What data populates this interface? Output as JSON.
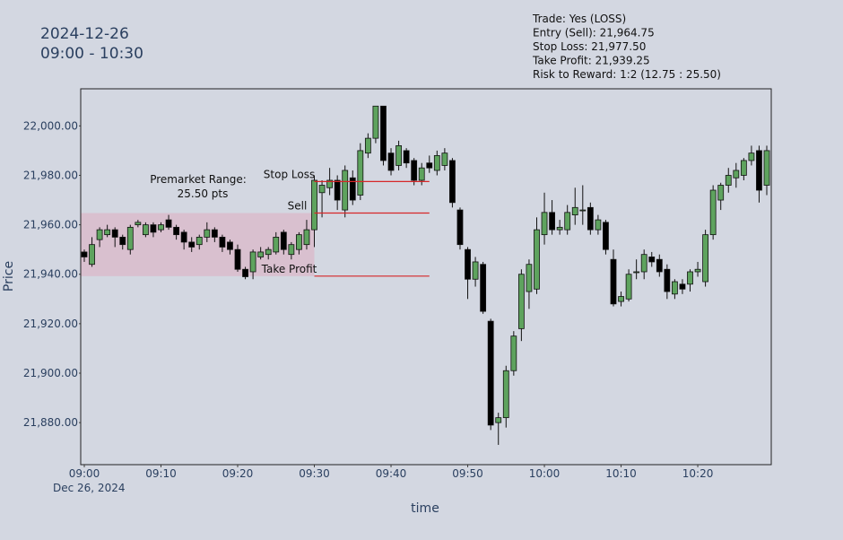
{
  "chart_data": {
    "type": "candlestick",
    "date_title": [
      "2024-12-26",
      "09:00 - 10:30"
    ],
    "info_lines": [
      "Trade: Yes (LOSS)",
      "Entry (Sell): 21,964.75",
      "Stop Loss: 21,977.50",
      "Take Profit: 21,939.25",
      "Risk to Reward: 1:2 (12.75 : 25.50)"
    ],
    "y_label": "Price",
    "x_label": "time",
    "x_date_label": "Dec 26, 2024",
    "up_color": "#5ea35e",
    "down_color": "#000000",
    "x": [
      "2024-12-26 09:00",
      "2024-12-26 09:01",
      "2024-12-26 09:02",
      "2024-12-26 09:03",
      "2024-12-26 09:04",
      "2024-12-26 09:05",
      "2024-12-26 09:06",
      "2024-12-26 09:07",
      "2024-12-26 09:08",
      "2024-12-26 09:09",
      "2024-12-26 09:10",
      "2024-12-26 09:11",
      "2024-12-26 09:12",
      "2024-12-26 09:13",
      "2024-12-26 09:14",
      "2024-12-26 09:15",
      "2024-12-26 09:16",
      "2024-12-26 09:17",
      "2024-12-26 09:18",
      "2024-12-26 09:19",
      "2024-12-26 09:20",
      "2024-12-26 09:21",
      "2024-12-26 09:22",
      "2024-12-26 09:23",
      "2024-12-26 09:24",
      "2024-12-26 09:25",
      "2024-12-26 09:26",
      "2024-12-26 09:27",
      "2024-12-26 09:28",
      "2024-12-26 09:29",
      "2024-12-26 09:30",
      "2024-12-26 09:31",
      "2024-12-26 09:32",
      "2024-12-26 09:33",
      "2024-12-26 09:34",
      "2024-12-26 09:35",
      "2024-12-26 09:36",
      "2024-12-26 09:37",
      "2024-12-26 09:38",
      "2024-12-26 09:39",
      "2024-12-26 09:40",
      "2024-12-26 09:41",
      "2024-12-26 09:42",
      "2024-12-26 09:43",
      "2024-12-26 09:44",
      "2024-12-26 09:45",
      "2024-12-26 09:46",
      "2024-12-26 09:47",
      "2024-12-26 09:48",
      "2024-12-26 09:49",
      "2024-12-26 09:50",
      "2024-12-26 09:51",
      "2024-12-26 09:52",
      "2024-12-26 09:53",
      "2024-12-26 09:54",
      "2024-12-26 09:55",
      "2024-12-26 09:56",
      "2024-12-26 09:57",
      "2024-12-26 09:58",
      "2024-12-26 09:59",
      "2024-12-26 10:00",
      "2024-12-26 10:01",
      "2024-12-26 10:02",
      "2024-12-26 10:03",
      "2024-12-26 10:04",
      "2024-12-26 10:05",
      "2024-12-26 10:06",
      "2024-12-26 10:07",
      "2024-12-26 10:08",
      "2024-12-26 10:09",
      "2024-12-26 10:10",
      "2024-12-26 10:11",
      "2024-12-26 10:12",
      "2024-12-26 10:13",
      "2024-12-26 10:14",
      "2024-12-26 10:15",
      "2024-12-26 10:16",
      "2024-12-26 10:17",
      "2024-12-26 10:18",
      "2024-12-26 10:19",
      "2024-12-26 10:20",
      "2024-12-26 10:21",
      "2024-12-26 10:22",
      "2024-12-26 10:23",
      "2024-12-26 10:24",
      "2024-12-26 10:25",
      "2024-12-26 10:26",
      "2024-12-26 10:27",
      "2024-12-26 10:28",
      "2024-12-26 10:29"
    ],
    "open": [
      21949,
      21944,
      21954,
      21956,
      21958,
      21955,
      21950,
      21960,
      21956,
      21960,
      21958,
      21962,
      21959,
      21957,
      21953,
      21952,
      21955,
      21958,
      21955,
      21953,
      21950,
      21942,
      21941,
      21947,
      21948,
      21949,
      21957,
      21948,
      21950,
      21952,
      21958,
      21973,
      21975,
      21978,
      21966,
      21979,
      21972,
      21989,
      21995,
      22008,
      21989,
      21984,
      21990,
      21986,
      21978,
      21985,
      21982,
      21984,
      21986,
      21966,
      21950,
      21938,
      21944,
      21921,
      21880,
      21882,
      21901,
      21918,
      21933,
      21934,
      21956,
      21965,
      21958,
      21958,
      21964,
      21966,
      21967,
      21958,
      21961,
      21946,
      21929,
      21930,
      21941,
      21941,
      21947,
      21946,
      21942,
      21932,
      21936,
      21936,
      21941,
      21937,
      21956,
      21970,
      21976,
      21979,
      21980,
      21986,
      21990,
      21976
    ],
    "high": [
      21950,
      21955,
      21959,
      21960,
      21959,
      21956,
      21960,
      21962,
      21961,
      21961,
      21961,
      21964,
      21960,
      21958,
      21955,
      21956,
      21961,
      21959,
      21956,
      21954,
      21952,
      21943,
      21950,
      21951,
      21951,
      21957,
      21958,
      21953,
      21957,
      21962,
      21980,
      21978,
      21983,
      21980,
      21984,
      21982,
      21993,
      21997,
      22008,
      22008,
      21991,
      21994,
      21991,
      21987,
      21985,
      21988,
      21990,
      21991,
      21987,
      21967,
      21951,
      21947,
      21945,
      21922,
      21884,
      21903,
      21917,
      21942,
      21946,
      21963,
      21973,
      21970,
      21962,
      21968,
      21975,
      21976,
      21969,
      21964,
      21962,
      21950,
      21933,
      21942,
      21946,
      21950,
      21949,
      21948,
      21944,
      21938,
      21938,
      21942,
      21945,
      21958,
      21976,
      21977,
      21983,
      21985,
      21987,
      21992,
      21992,
      21992
    ],
    "low": [
      21945,
      21943,
      21951,
      21955,
      21951,
      21950,
      21948,
      21959,
      21955,
      21955,
      21957,
      21958,
      21954,
      21950,
      21949,
      21950,
      21953,
      21953,
      21949,
      21948,
      21941,
      21938,
      21938,
      21946,
      21946,
      21948,
      21948,
      21946,
      21948,
      21950,
      21951,
      21963,
      21972,
      21966,
      21963,
      21968,
      21970,
      21987,
      21993,
      21984,
      21980,
      21982,
      21983,
      21976,
      21976,
      21981,
      21980,
      21982,
      21967,
      21950,
      21930,
      21935,
      21924,
      21877,
      21871,
      21878,
      21899,
      21913,
      21926,
      21932,
      21952,
      21956,
      21956,
      21956,
      21960,
      21960,
      21956,
      21956,
      21948,
      21927,
      21927,
      21929,
      21938,
      21938,
      21943,
      21939,
      21930,
      21930,
      21932,
      21933,
      21939,
      21935,
      21954,
      21966,
      21973,
      21975,
      21978,
      21984,
      21969,
      21972
    ],
    "close": [
      21947,
      21952,
      21958,
      21958,
      21955,
      21952,
      21959,
      21961,
      21960,
      21957,
      21960,
      21959,
      21956,
      21953,
      21951,
      21955,
      21958,
      21955,
      21951,
      21950,
      21942,
      21939,
      21949,
      21949,
      21950,
      21955,
      21950,
      21952,
      21956,
      21958,
      21978,
      21976,
      21978,
      21970,
      21982,
      21970,
      21990,
      21995,
      22008,
      21986,
      21982,
      21992,
      21985,
      21978,
      21983,
      21983,
      21988,
      21989,
      21969,
      21952,
      21938,
      21945,
      21925,
      21879,
      21882,
      21901,
      21915,
      21940,
      21944,
      21958,
      21965,
      21958,
      21959,
      21965,
      21967,
      21966,
      21958,
      21962,
      21950,
      21928,
      21931,
      21940,
      21941,
      21948,
      21945,
      21941,
      21933,
      21937,
      21934,
      21941,
      21942,
      21956,
      21974,
      21976,
      21980,
      21982,
      21986,
      21989,
      21974,
      21990
    ],
    "xlim": [
      "2024-12-26 08:59:32",
      "2024-12-26 10:29:35"
    ],
    "xticks": [
      {
        "value": "2024-12-26 09:00",
        "label": "09:00"
      },
      {
        "value": "2024-12-26 09:10",
        "label": "09:10"
      },
      {
        "value": "2024-12-26 09:20",
        "label": "09:20"
      },
      {
        "value": "2024-12-26 09:30",
        "label": "09:30"
      },
      {
        "value": "2024-12-26 09:40",
        "label": "09:40"
      },
      {
        "value": "2024-12-26 09:50",
        "label": "09:50"
      },
      {
        "value": "2024-12-26 10:00",
        "label": "10:00"
      },
      {
        "value": "2024-12-26 10:10",
        "label": "10:10"
      },
      {
        "value": "2024-12-26 10:20",
        "label": "10:20"
      }
    ],
    "ylim": [
      21863,
      22015
    ],
    "yticks": [
      {
        "value": 21880,
        "label": "21,880.00"
      },
      {
        "value": 21900,
        "label": "21,900.00"
      },
      {
        "value": 21920,
        "label": "21,920.00"
      },
      {
        "value": 21940,
        "label": "21,940.00"
      },
      {
        "value": 21960,
        "label": "21,960.00"
      },
      {
        "value": 21980,
        "label": "21,980.00"
      },
      {
        "value": 22000,
        "label": "22,000.00"
      }
    ],
    "premarket": {
      "start": "2024-12-26 08:59:32",
      "end": "2024-12-26 09:30",
      "low": 21939.25,
      "high": 21964.75,
      "color": "#d9bccb",
      "label": [
        "Premarket Range:",
        "25.50 pts"
      ]
    },
    "levels": {
      "start": "2024-12-26 09:30",
      "end": "2024-12-26 09:45",
      "color": "#d62728",
      "items": [
        {
          "name": "Stop Loss",
          "value": 21977.5
        },
        {
          "name": "Sell",
          "value": 21964.75
        },
        {
          "name": "Take Profit",
          "value": 21939.25
        }
      ]
    }
  }
}
